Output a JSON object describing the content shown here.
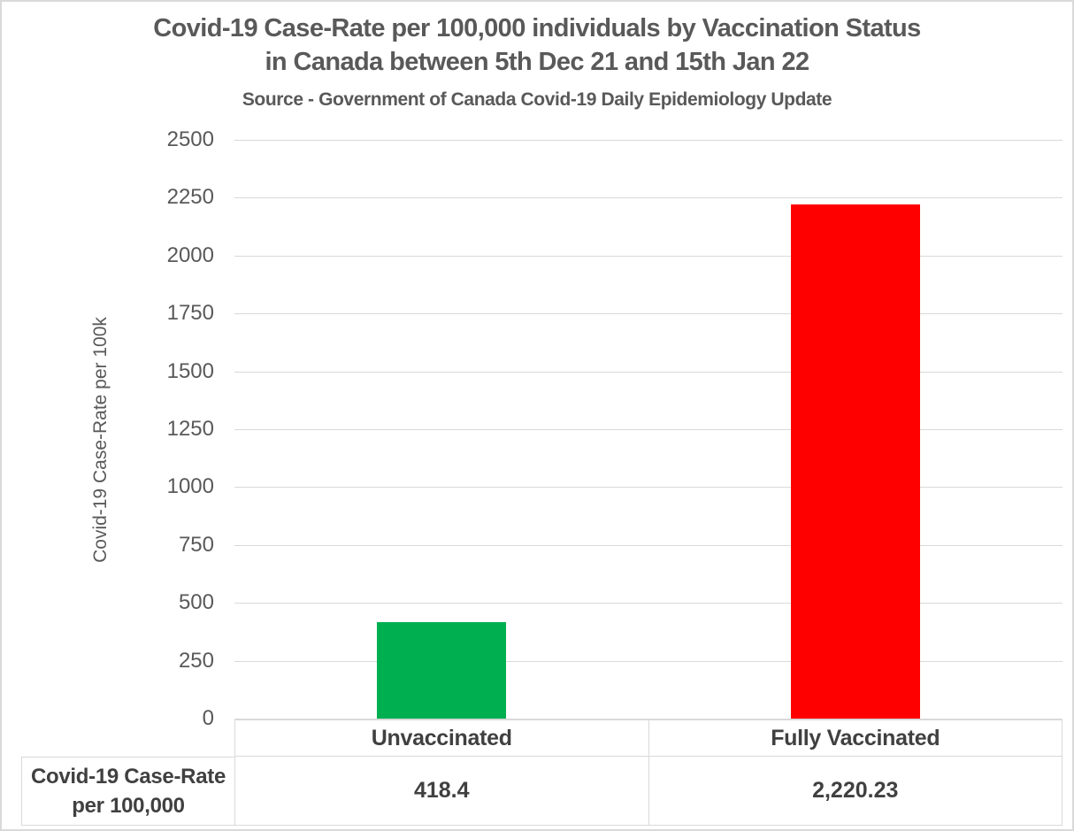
{
  "page": {
    "background_color": "#FFFFFF",
    "border_color": "#D9D9D9"
  },
  "header": {
    "title_line1": "Covid-19 Case-Rate per 100,000 individuals by Vaccination Status",
    "title_line2": "in Canada between 5th Dec 21 and 15th Jan 22",
    "source_line": "Source - Government of Canada Covid-19 Daily Epidemiology Update"
  },
  "chart_data": {
    "type": "bar",
    "title": "Covid-19 Case-Rate per 100,000 individuals by Vaccination Status in Canada between 5th Dec 21 and 15th Jan 22",
    "subtitle": "Source - Government of Canada Covid-19 Daily Epidemiology Update",
    "categories": [
      "Unvaccinated",
      "Fully Vaccinated"
    ],
    "values": [
      418.4,
      2220.23
    ],
    "value_labels": [
      "418.4",
      "2,220.23"
    ],
    "bar_colors": [
      "#00B050",
      "#FF0000"
    ],
    "xlabel": "",
    "ylabel": "Covid-19 Case-Rate per 100k",
    "ylim": [
      0,
      2500
    ],
    "ytick_interval": 250,
    "yticks": [
      0,
      250,
      500,
      750,
      1000,
      1250,
      1500,
      1750,
      2000,
      2250,
      2500
    ],
    "grid": true,
    "gridline_color": "#D9D9D9",
    "legend_position": "none",
    "text_color": "#595959",
    "bold_text_color": "#404040",
    "data_table": {
      "row_label": "Covid-19 Case-Rate per 100,000",
      "row_label_lines": [
        "Covid-19 Case-Rate",
        "per 100,000"
      ],
      "cells": [
        "418.4",
        "2,220.23"
      ]
    }
  }
}
